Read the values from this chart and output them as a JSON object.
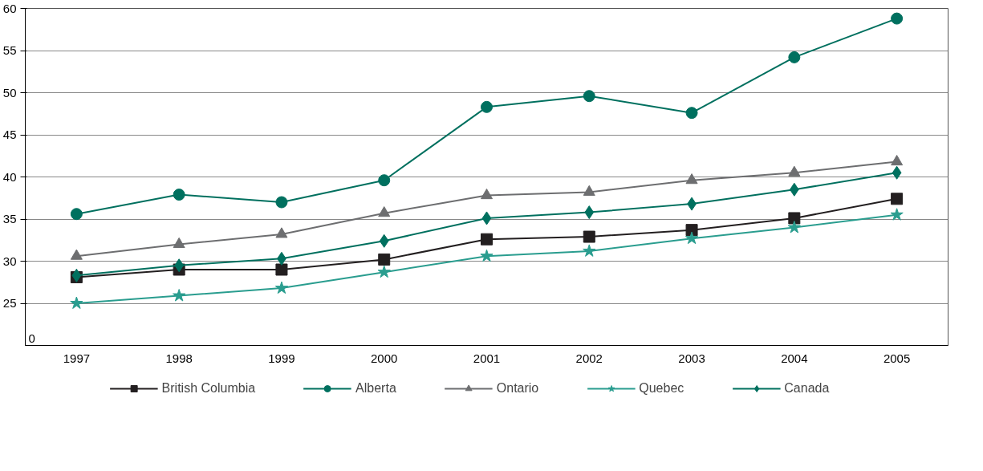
{
  "chart_data": {
    "type": "line",
    "categories": [
      "1997",
      "1998",
      "1999",
      "2000",
      "2001",
      "2002",
      "2003",
      "2004",
      "2005"
    ],
    "ylim": [
      20,
      60
    ],
    "yticks": [
      25,
      30,
      35,
      40,
      45,
      50,
      55,
      60
    ],
    "grid": "y",
    "legend": "bottom",
    "annotations": [
      "0"
    ],
    "series": [
      {
        "name": "British Columbia",
        "color": "#231f20",
        "marker": "square",
        "values": [
          28.1,
          29.0,
          29.0,
          30.2,
          32.6,
          32.9,
          33.7,
          35.1,
          37.4
        ]
      },
      {
        "name": "Alberta",
        "color": "#00705f",
        "marker": "circle",
        "values": [
          35.6,
          37.9,
          37.0,
          39.6,
          48.3,
          49.6,
          47.6,
          54.2,
          58.8
        ]
      },
      {
        "name": "Ontario",
        "color": "#6d6e70",
        "marker": "triangle",
        "values": [
          30.6,
          32.0,
          33.2,
          35.7,
          37.8,
          38.2,
          39.6,
          40.5,
          41.8
        ]
      },
      {
        "name": "Quebec",
        "color": "#2a9d8f",
        "marker": "star",
        "values": [
          25.0,
          25.9,
          26.8,
          28.7,
          30.6,
          31.2,
          32.7,
          34.0,
          35.5
        ]
      },
      {
        "name": "Canada",
        "color": "#00705f",
        "marker": "diamond",
        "values": [
          28.3,
          29.5,
          30.3,
          32.4,
          35.1,
          35.8,
          36.8,
          38.5,
          40.5
        ]
      }
    ]
  }
}
